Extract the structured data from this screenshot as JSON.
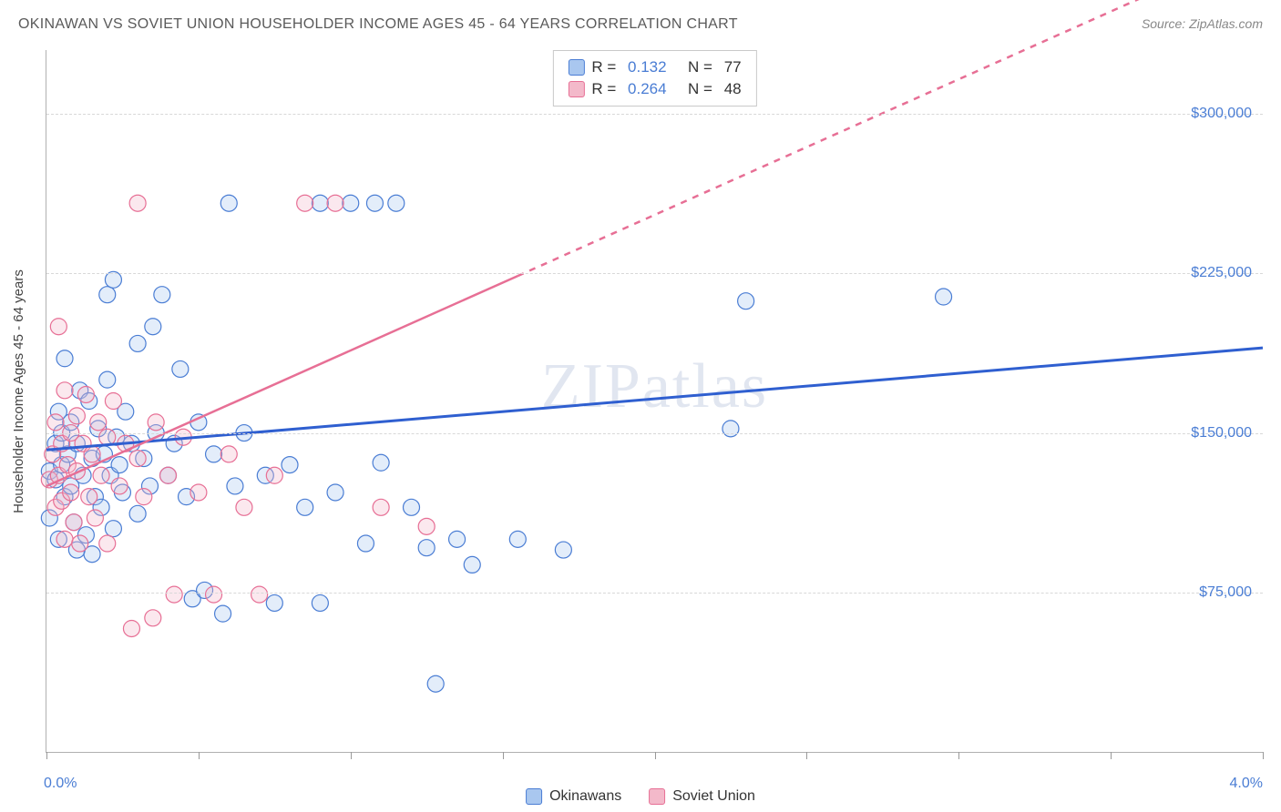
{
  "title": "OKINAWAN VS SOVIET UNION HOUSEHOLDER INCOME AGES 45 - 64 YEARS CORRELATION CHART",
  "source": "Source: ZipAtlas.com",
  "watermark": "ZIPatlas",
  "yaxis_title": "Householder Income Ages 45 - 64 years",
  "chart": {
    "type": "scatter",
    "background_color": "#ffffff",
    "grid_color": "#d8d8d8",
    "axis_color": "#b0b0b0",
    "tick_label_color": "#4a7dd4",
    "x": {
      "min": 0.0,
      "max": 4.0,
      "label_min": "0.0%",
      "label_max": "4.0%",
      "ticks_pct": [
        0,
        12.5,
        25,
        37.5,
        50,
        62.5,
        75,
        87.5,
        100
      ]
    },
    "y": {
      "min": 0,
      "max": 330000,
      "ticks": [
        {
          "v": 75000,
          "label": "$75,000"
        },
        {
          "v": 150000,
          "label": "$150,000"
        },
        {
          "v": 225000,
          "label": "$225,000"
        },
        {
          "v": 300000,
          "label": "$300,000"
        }
      ]
    },
    "marker_radius": 9,
    "series": [
      {
        "name": "Okinawans",
        "fill": "#a9c7ef",
        "stroke": "#4a7dd4",
        "R": "0.132",
        "N": "77",
        "trend": {
          "color": "#2f5fd0",
          "width": 3,
          "y_at_xmin": 142000,
          "y_at_xmax": 190000,
          "dash_after_x": null
        },
        "points": [
          [
            0.01,
            132000
          ],
          [
            0.01,
            110000
          ],
          [
            0.03,
            145000
          ],
          [
            0.03,
            128000
          ],
          [
            0.04,
            160000
          ],
          [
            0.04,
            100000
          ],
          [
            0.05,
            150000
          ],
          [
            0.05,
            135000
          ],
          [
            0.06,
            120000
          ],
          [
            0.06,
            185000
          ],
          [
            0.07,
            140000
          ],
          [
            0.08,
            155000
          ],
          [
            0.08,
            125000
          ],
          [
            0.09,
            108000
          ],
          [
            0.1,
            95000
          ],
          [
            0.1,
            145000
          ],
          [
            0.11,
            170000
          ],
          [
            0.12,
            130000
          ],
          [
            0.13,
            102000
          ],
          [
            0.14,
            165000
          ],
          [
            0.15,
            93000
          ],
          [
            0.15,
            138000
          ],
          [
            0.16,
            120000
          ],
          [
            0.17,
            152000
          ],
          [
            0.18,
            115000
          ],
          [
            0.19,
            140000
          ],
          [
            0.2,
            175000
          ],
          [
            0.2,
            215000
          ],
          [
            0.21,
            130000
          ],
          [
            0.22,
            105000
          ],
          [
            0.23,
            148000
          ],
          [
            0.24,
            135000
          ],
          [
            0.25,
            122000
          ],
          [
            0.26,
            160000
          ],
          [
            0.28,
            145000
          ],
          [
            0.3,
            112000
          ],
          [
            0.3,
            192000
          ],
          [
            0.32,
            138000
          ],
          [
            0.34,
            125000
          ],
          [
            0.35,
            200000
          ],
          [
            0.36,
            150000
          ],
          [
            0.38,
            215000
          ],
          [
            0.4,
            130000
          ],
          [
            0.42,
            145000
          ],
          [
            0.44,
            180000
          ],
          [
            0.46,
            120000
          ],
          [
            0.48,
            72000
          ],
          [
            0.5,
            155000
          ],
          [
            0.52,
            76000
          ],
          [
            0.55,
            140000
          ],
          [
            0.58,
            65000
          ],
          [
            0.6,
            258000
          ],
          [
            0.62,
            125000
          ],
          [
            0.65,
            150000
          ],
          [
            0.72,
            130000
          ],
          [
            0.75,
            70000
          ],
          [
            0.8,
            135000
          ],
          [
            0.85,
            115000
          ],
          [
            0.9,
            258000
          ],
          [
            0.9,
            70000
          ],
          [
            0.95,
            122000
          ],
          [
            1.0,
            258000
          ],
          [
            1.05,
            98000
          ],
          [
            1.08,
            258000
          ],
          [
            1.1,
            136000
          ],
          [
            1.15,
            258000
          ],
          [
            1.2,
            115000
          ],
          [
            1.25,
            96000
          ],
          [
            1.28,
            32000
          ],
          [
            1.35,
            100000
          ],
          [
            1.4,
            88000
          ],
          [
            1.55,
            100000
          ],
          [
            1.7,
            95000
          ],
          [
            2.25,
            152000
          ],
          [
            2.3,
            212000
          ],
          [
            2.95,
            214000
          ],
          [
            0.22,
            222000
          ]
        ]
      },
      {
        "name": "Soviet Union",
        "fill": "#f3b9ca",
        "stroke": "#e76f95",
        "R": "0.264",
        "N": "48",
        "trend": {
          "color": "#e76f95",
          "width": 2.5,
          "y_at_xmin": 125000,
          "y_at_xmax": 380000,
          "dash_after_x": 1.55
        },
        "points": [
          [
            0.01,
            128000
          ],
          [
            0.02,
            140000
          ],
          [
            0.03,
            115000
          ],
          [
            0.03,
            155000
          ],
          [
            0.04,
            130000
          ],
          [
            0.04,
            200000
          ],
          [
            0.05,
            118000
          ],
          [
            0.05,
            145000
          ],
          [
            0.06,
            170000
          ],
          [
            0.06,
            100000
          ],
          [
            0.07,
            135000
          ],
          [
            0.08,
            150000
          ],
          [
            0.08,
            122000
          ],
          [
            0.09,
            108000
          ],
          [
            0.1,
            158000
          ],
          [
            0.1,
            132000
          ],
          [
            0.11,
            98000
          ],
          [
            0.12,
            145000
          ],
          [
            0.13,
            168000
          ],
          [
            0.14,
            120000
          ],
          [
            0.15,
            140000
          ],
          [
            0.16,
            110000
          ],
          [
            0.17,
            155000
          ],
          [
            0.18,
            130000
          ],
          [
            0.2,
            148000
          ],
          [
            0.2,
            98000
          ],
          [
            0.22,
            165000
          ],
          [
            0.24,
            125000
          ],
          [
            0.26,
            145000
          ],
          [
            0.28,
            58000
          ],
          [
            0.3,
            138000
          ],
          [
            0.3,
            258000
          ],
          [
            0.32,
            120000
          ],
          [
            0.35,
            63000
          ],
          [
            0.36,
            155000
          ],
          [
            0.4,
            130000
          ],
          [
            0.42,
            74000
          ],
          [
            0.45,
            148000
          ],
          [
            0.5,
            122000
          ],
          [
            0.55,
            74000
          ],
          [
            0.6,
            140000
          ],
          [
            0.65,
            115000
          ],
          [
            0.7,
            74000
          ],
          [
            0.75,
            130000
          ],
          [
            0.85,
            258000
          ],
          [
            0.95,
            258000
          ],
          [
            1.1,
            115000
          ],
          [
            1.25,
            106000
          ]
        ]
      }
    ]
  },
  "bottom_legend": [
    {
      "label": "Okinawans",
      "fill": "#a9c7ef",
      "stroke": "#4a7dd4"
    },
    {
      "label": "Soviet Union",
      "fill": "#f3b9ca",
      "stroke": "#e76f95"
    }
  ]
}
